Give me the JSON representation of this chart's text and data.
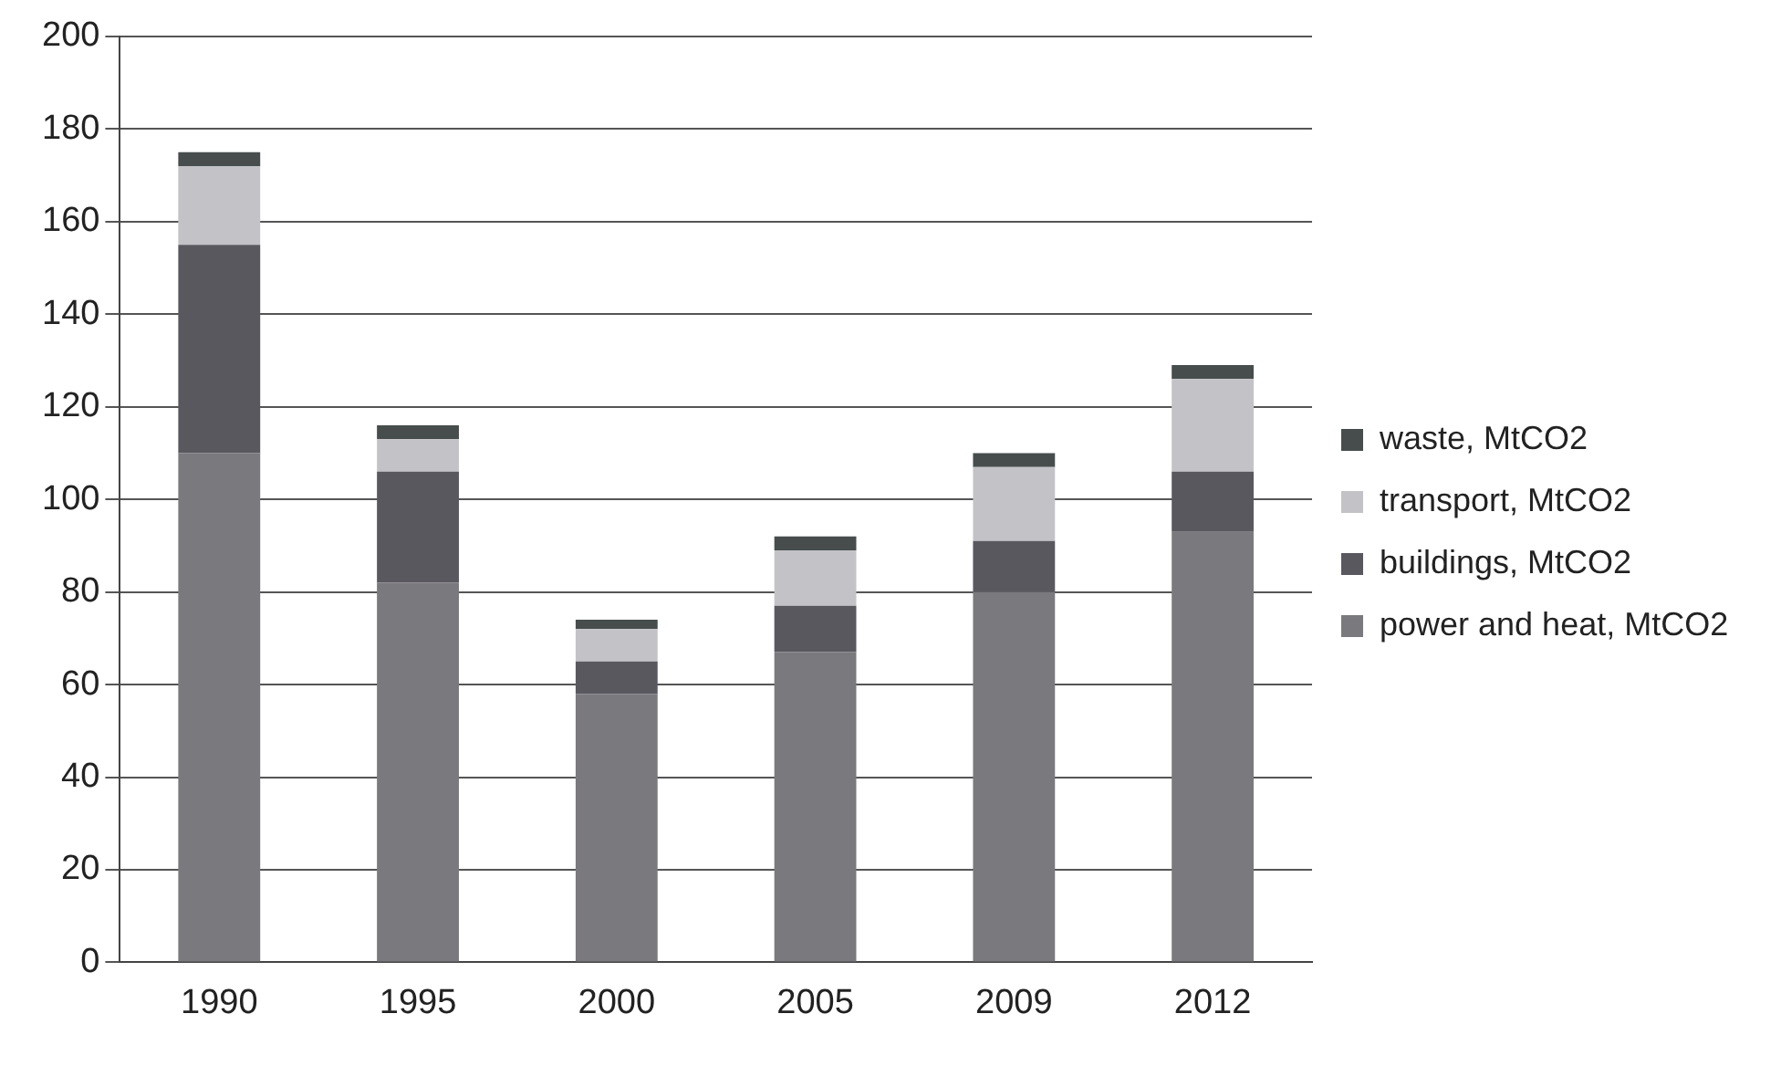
{
  "chart_data": {
    "type": "bar",
    "stacked": true,
    "categories": [
      "1990",
      "1995",
      "2000",
      "2005",
      "2009",
      "2012"
    ],
    "series": [
      {
        "name": "power and heat, MtCO2",
        "color": "#7a797e",
        "values": [
          110,
          82,
          58,
          67,
          80,
          93
        ]
      },
      {
        "name": "buildings, MtCO2",
        "color": "#5a585f",
        "values": [
          45,
          24,
          7,
          10,
          11,
          13
        ]
      },
      {
        "name": "transport, MtCO2",
        "color": "#c3c3c7",
        "values": [
          17,
          7,
          7,
          12,
          16,
          20
        ]
      },
      {
        "name": "waste, MtCO2",
        "color": "#474d4c",
        "values": [
          3,
          3,
          2,
          3,
          3,
          3
        ]
      }
    ],
    "ylim": [
      0,
      200
    ],
    "yticks": [
      0,
      20,
      40,
      60,
      80,
      100,
      120,
      140,
      160,
      180,
      200
    ],
    "grid": "y",
    "legend": "right"
  }
}
